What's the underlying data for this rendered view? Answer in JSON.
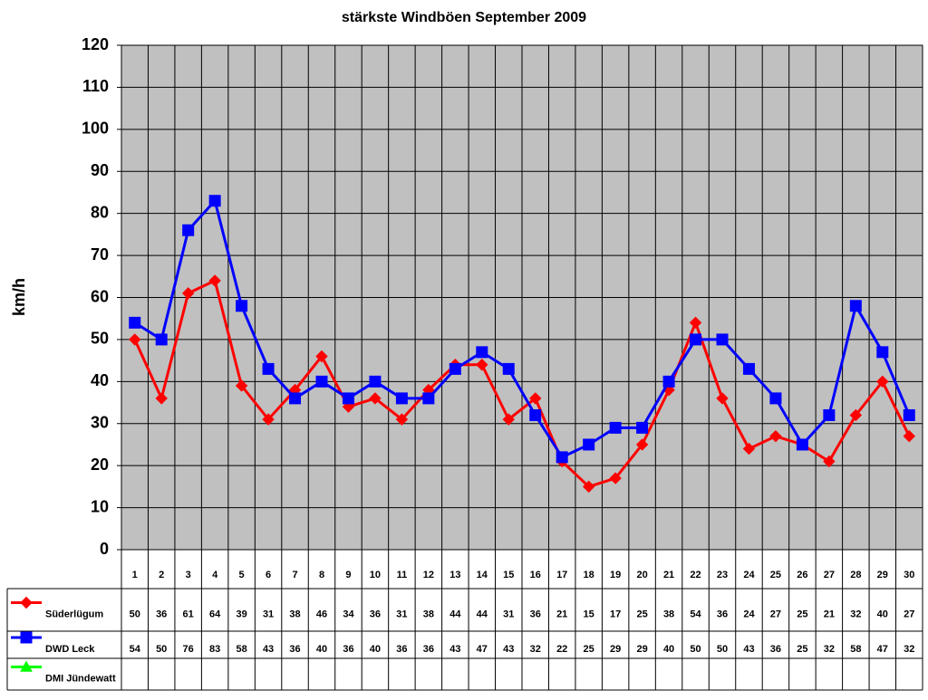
{
  "chart_data": {
    "type": "line",
    "title": "stärkste Windböen September 2009",
    "y_label": "km/h",
    "categories": [
      "1",
      "2",
      "3",
      "4",
      "5",
      "6",
      "7",
      "8",
      "9",
      "10",
      "11",
      "12",
      "13",
      "14",
      "15",
      "16",
      "17",
      "18",
      "19",
      "20",
      "21",
      "22",
      "23",
      "24",
      "25",
      "26",
      "27",
      "28",
      "29",
      "30"
    ],
    "series": [
      {
        "name": "Süderlügum",
        "color": "#ff0000",
        "marker": "diamond",
        "values": [
          50,
          36,
          61,
          64,
          39,
          31,
          38,
          46,
          34,
          36,
          31,
          38,
          44,
          44,
          31,
          36,
          21,
          15,
          17,
          25,
          38,
          54,
          36,
          24,
          27,
          25,
          21,
          32,
          40,
          27
        ]
      },
      {
        "name": "DWD Leck",
        "color": "#0000ff",
        "marker": "square",
        "values": [
          54,
          50,
          76,
          83,
          58,
          43,
          36,
          40,
          36,
          40,
          36,
          36,
          43,
          47,
          43,
          32,
          22,
          25,
          29,
          29,
          40,
          50,
          50,
          43,
          36,
          25,
          32,
          58,
          47,
          32
        ]
      },
      {
        "name": "DMI Jündewatt",
        "color": "#00ff00",
        "marker": "triangle",
        "values": [
          null,
          null,
          null,
          null,
          null,
          null,
          null,
          null,
          null,
          null,
          null,
          null,
          null,
          null,
          null,
          null,
          null,
          null,
          null,
          null,
          null,
          null,
          null,
          null,
          null,
          null,
          null,
          null,
          null,
          null
        ]
      }
    ],
    "ylim": [
      0,
      120
    ],
    "yticks": [
      0,
      10,
      20,
      30,
      40,
      50,
      60,
      70,
      80,
      90,
      100,
      110,
      120
    ],
    "grid": true,
    "data_table": true
  }
}
